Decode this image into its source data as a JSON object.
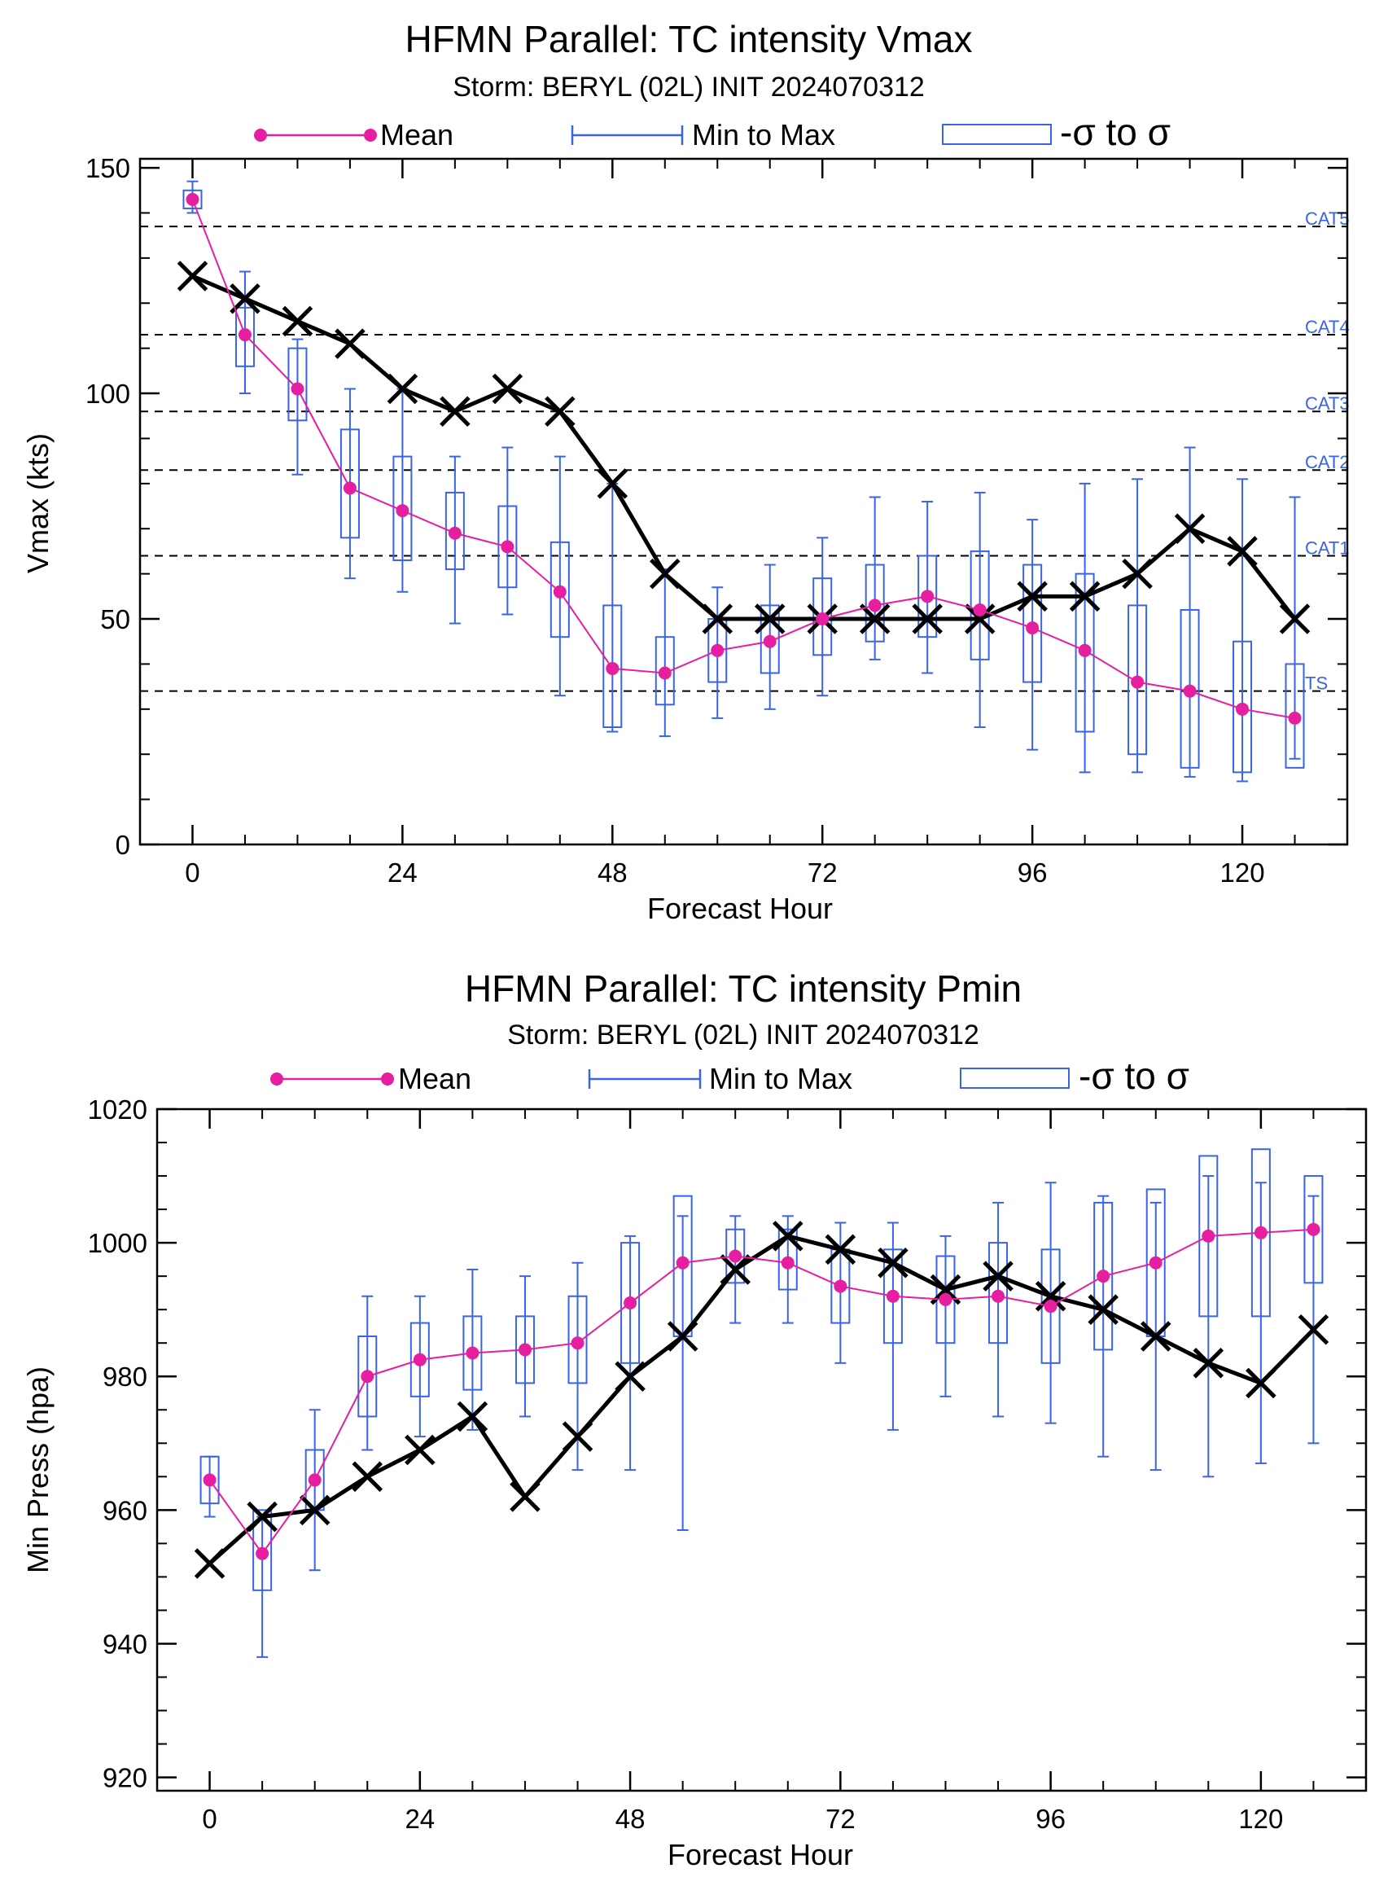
{
  "colors": {
    "mean": "#e61ea0",
    "spread": "#3a63e6",
    "best_track": "#000000",
    "reference": "#000000"
  },
  "legend_labels": {
    "mean": "Mean",
    "minmax": "Min to Max",
    "sigma": "-σ to σ"
  },
  "chart_data": [
    {
      "type": "line",
      "title": "HFMN Parallel: TC intensity Vmax",
      "subtitle": "Storm: BERYL (02L) INIT 2024070312",
      "xlabel": "Forecast Hour",
      "ylabel": "Vmax (kts)",
      "xlim": [
        -6,
        132
      ],
      "ylim": [
        0,
        152
      ],
      "xticks": [
        0,
        24,
        48,
        72,
        96,
        120
      ],
      "yticks": [
        0,
        50,
        100,
        150
      ],
      "yminor_step": 10,
      "xminor_step": 6,
      "x": [
        0,
        6,
        12,
        18,
        24,
        30,
        36,
        42,
        48,
        54,
        60,
        66,
        72,
        78,
        84,
        90,
        96,
        102,
        108,
        114,
        120,
        126
      ],
      "reference_lines": [
        {
          "label": "CAT5",
          "y": 137
        },
        {
          "label": "CAT4",
          "y": 113
        },
        {
          "label": "CAT3",
          "y": 96
        },
        {
          "label": "CAT2",
          "y": 83
        },
        {
          "label": "CAT1",
          "y": 64
        },
        {
          "label": "TS",
          "y": 34
        }
      ],
      "series": [
        {
          "name": "Mean",
          "values": [
            143,
            113,
            101,
            79,
            74,
            69,
            66,
            56,
            39,
            38,
            43,
            45,
            50,
            53,
            55,
            52,
            48,
            43,
            36,
            34,
            30,
            28
          ]
        },
        {
          "name": "Min to Max",
          "min": [
            140,
            100,
            82,
            59,
            56,
            49,
            51,
            33,
            25,
            24,
            28,
            30,
            33,
            41,
            38,
            26,
            21,
            16,
            16,
            15,
            14,
            19
          ],
          "max": [
            147,
            127,
            112,
            101,
            101,
            86,
            88,
            86,
            80,
            61,
            57,
            62,
            68,
            77,
            76,
            78,
            72,
            80,
            81,
            88,
            81,
            77
          ]
        },
        {
          "name": "-σ to σ",
          "low": [
            141,
            106,
            94,
            68,
            63,
            61,
            57,
            46,
            26,
            31,
            36,
            38,
            42,
            45,
            46,
            41,
            36,
            25,
            20,
            17,
            16,
            17
          ],
          "high": [
            145,
            119,
            110,
            92,
            86,
            78,
            75,
            67,
            53,
            46,
            50,
            53,
            59,
            62,
            64,
            65,
            62,
            60,
            53,
            52,
            45,
            40
          ]
        },
        {
          "values": [
            126,
            121,
            116,
            111,
            101,
            96,
            101,
            96,
            80,
            60,
            50,
            50,
            50,
            50,
            50,
            50,
            55,
            55,
            60,
            70,
            65,
            50
          ]
        }
      ]
    },
    {
      "type": "line",
      "title": "HFMN Parallel: TC intensity Pmin",
      "subtitle": "Storm: BERYL (02L) INIT 2024070312",
      "xlabel": "Forecast Hour",
      "ylabel": "Min Press (hpa)",
      "xlim": [
        -6,
        132
      ],
      "ylim": [
        918,
        1020
      ],
      "xticks": [
        0,
        24,
        48,
        72,
        96,
        120
      ],
      "yticks": [
        920,
        940,
        960,
        980,
        1000,
        1020
      ],
      "yminor_step": 5,
      "xminor_step": 6,
      "x": [
        0,
        6,
        12,
        18,
        24,
        30,
        36,
        42,
        48,
        54,
        60,
        66,
        72,
        78,
        84,
        90,
        96,
        102,
        108,
        114,
        120,
        126
      ],
      "series": [
        {
          "name": "Mean",
          "values": [
            964.5,
            953.5,
            964.5,
            980,
            982.5,
            983.5,
            984,
            985,
            991,
            997,
            998,
            997,
            993.5,
            992,
            991.5,
            992,
            990.5,
            995,
            997,
            1001,
            1001.5,
            1002
          ]
        },
        {
          "name": "Min to Max",
          "min": [
            959,
            938,
            951,
            969,
            971,
            972,
            974,
            966,
            966,
            957,
            988,
            988,
            982,
            972,
            977,
            974,
            973,
            968,
            966,
            965,
            967,
            970
          ],
          "max": [
            968,
            959,
            975,
            992,
            992,
            996,
            995,
            997,
            1001,
            1004,
            1004,
            1004,
            1003,
            1003,
            1001,
            1006,
            1009,
            1007,
            1006,
            1010,
            1009,
            1007
          ]
        },
        {
          "name": "-σ to σ",
          "low": [
            961,
            948,
            960,
            974,
            977,
            978,
            979,
            979,
            982,
            986,
            994,
            993,
            988,
            985,
            985,
            985,
            982,
            984,
            986,
            989,
            989,
            994
          ],
          "high": [
            968,
            960,
            969,
            986,
            988,
            989,
            989,
            992,
            1000,
            1007,
            1002,
            1002,
            999,
            999,
            998,
            1000,
            999,
            1006,
            1008,
            1013,
            1014,
            1010
          ]
        },
        {
          "values": [
            952,
            959,
            960,
            965,
            969,
            974,
            962,
            971,
            980,
            986,
            996,
            1001,
            999,
            997,
            993,
            995,
            992,
            990,
            986,
            982,
            979,
            987
          ]
        }
      ]
    }
  ]
}
